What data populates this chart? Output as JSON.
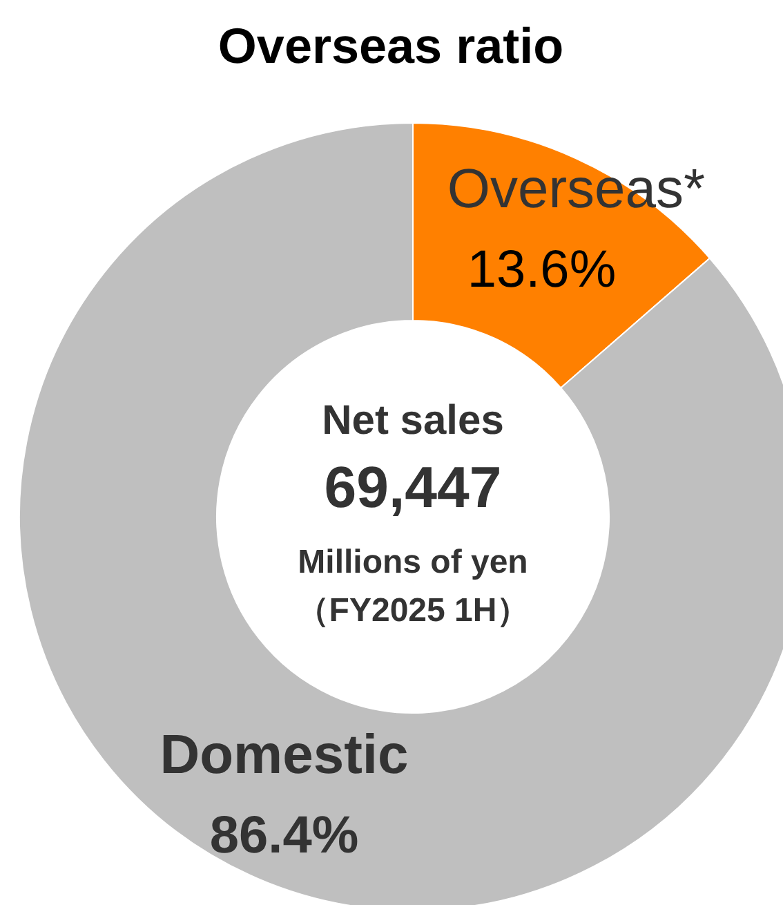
{
  "chart_data": {
    "type": "donut",
    "title": "Overseas ratio",
    "categories": [
      "Overseas*",
      "Domestic"
    ],
    "values": [
      13.6,
      86.4
    ],
    "value_labels": [
      "13.6%",
      "86.4%"
    ],
    "colors": [
      "#ff8000",
      "#bfbfbf"
    ],
    "annotations": [
      "Net sales",
      "69,447",
      "Millions of yen",
      "（FY2025 1H）"
    ]
  }
}
